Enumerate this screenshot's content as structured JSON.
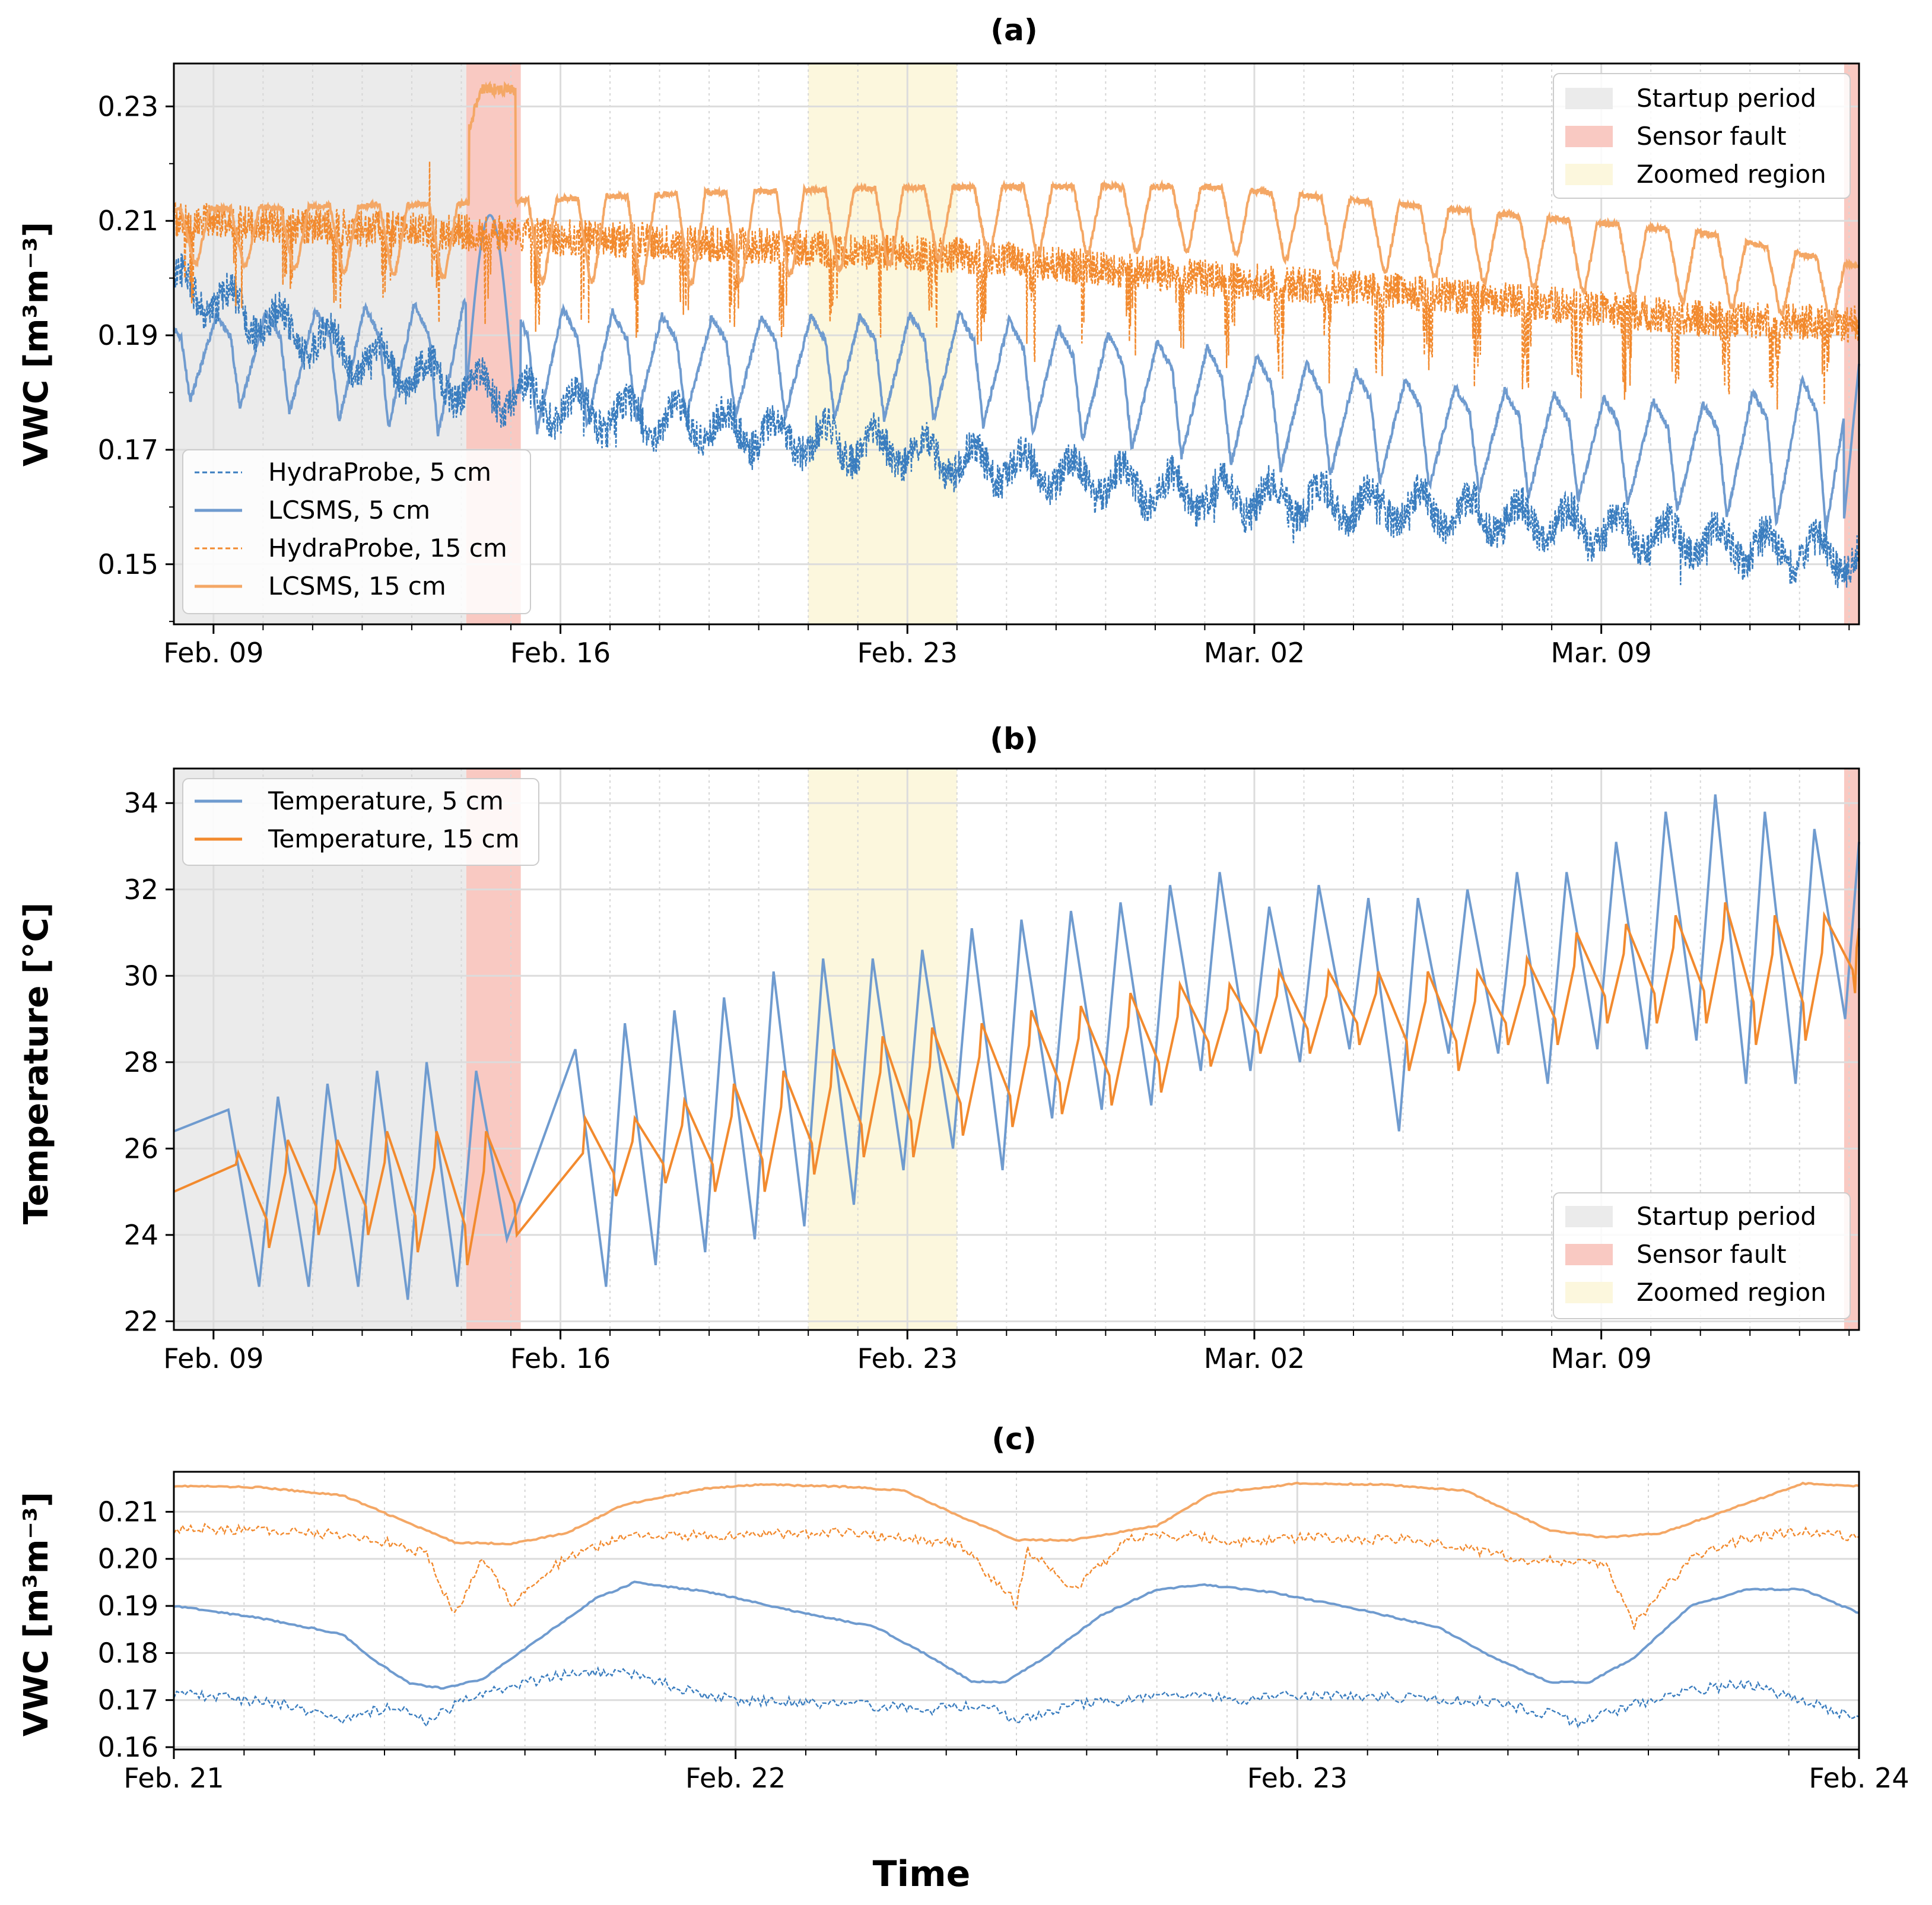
{
  "colors": {
    "blue_hydra": "#3a7dbf",
    "blue_lcsms": "#6f9bcf",
    "orange_hydra": "#f28a2e",
    "orange_lcsms": "#f4a765",
    "startup": "#ebebeb",
    "fault": "#f9c9c2",
    "zoom": "#fcf7dd",
    "grid": "#dcdcdc"
  },
  "figure": {
    "xlabel": "Time"
  },
  "chart_data": [
    {
      "panel": "a",
      "type": "line",
      "title": "(a)",
      "ylabel": "VWC [m³m⁻³]",
      "xlabel": "",
      "x_range_days": [
        -0.8,
        33.2
      ],
      "ylim": [
        0.1395,
        0.2375
      ],
      "yticks": [
        0.15,
        0.17,
        0.19,
        0.21,
        0.23
      ],
      "ytick_labels": [
        "0.15",
        "0.17",
        "0.19",
        "0.21",
        "0.23"
      ],
      "xticks_days": [
        0,
        7,
        14,
        21,
        28
      ],
      "xtick_labels": [
        "Feb. 09",
        "Feb. 16",
        "Feb. 23",
        "Mar. 02",
        "Mar. 09"
      ],
      "shaded_regions": [
        {
          "label": "Startup period",
          "from_day": -0.8,
          "to_day": 5.1,
          "color_key": "startup"
        },
        {
          "label": "Sensor fault",
          "from_day": 5.1,
          "to_day": 6.2,
          "color_key": "fault"
        },
        {
          "label": "Zoomed region",
          "from_day": 12.0,
          "to_day": 15.0,
          "color_key": "zoom"
        },
        {
          "label": "Sensor fault",
          "from_day": 32.9,
          "to_day": 33.2,
          "color_key": "fault"
        }
      ],
      "legends": [
        {
          "position": "top-right",
          "entries": [
            "Startup period",
            "Sensor fault",
            "Zoomed region"
          ]
        },
        {
          "position": "lower-left",
          "entries": [
            "HydraProbe, 5 cm",
            "LCSMS, 5 cm",
            "HydraProbe, 15 cm",
            "LCSMS, 15 cm"
          ]
        }
      ],
      "series": [
        {
          "name": "HydraProbe, 5 cm",
          "style": "dashed",
          "color_key": "blue_hydra",
          "anchors_days": [
            -0.8,
            2,
            5,
            8,
            12,
            16,
            20,
            24,
            28,
            33.2
          ],
          "anchors_values": [
            0.199,
            0.189,
            0.181,
            0.176,
            0.172,
            0.167,
            0.162,
            0.16,
            0.156,
            0.151
          ],
          "diurnal_amplitude": 0.003
        },
        {
          "name": "LCSMS, 5 cm",
          "style": "solid",
          "color_key": "blue_lcsms",
          "anchors_days": [
            -0.8,
            5,
            10,
            15,
            20,
            25,
            30,
            33.2
          ],
          "peak_values": [
            0.193,
            0.196,
            0.193,
            0.194,
            0.188,
            0.181,
            0.178,
            0.185
          ],
          "trough_values": [
            0.179,
            0.172,
            0.176,
            0.175,
            0.168,
            0.163,
            0.159,
            0.155
          ],
          "fault_spike_peak": 0.211
        },
        {
          "name": "HydraProbe, 15 cm",
          "style": "dashed",
          "color_key": "orange_hydra",
          "anchors_days": [
            -0.8,
            5,
            10,
            15,
            20,
            25,
            30,
            33.2
          ],
          "anchors_values": [
            0.21,
            0.208,
            0.206,
            0.204,
            0.2,
            0.197,
            0.193,
            0.192
          ],
          "dip_values_min": 0.178
        },
        {
          "name": "LCSMS, 15 cm",
          "style": "solid",
          "color_key": "orange_lcsms",
          "anchors_days": [
            -0.8,
            5,
            10,
            15,
            20,
            25,
            30,
            33.2
          ],
          "peak_values": [
            0.212,
            0.213,
            0.215,
            0.216,
            0.216,
            0.212,
            0.208,
            0.202
          ],
          "trough_values": [
            0.203,
            0.2,
            0.199,
            0.204,
            0.205,
            0.2,
            0.196,
            0.192
          ],
          "fault_plateau": 0.233
        }
      ]
    },
    {
      "panel": "b",
      "type": "line",
      "title": "(b)",
      "ylabel": "Temperature [°C]",
      "xlabel": "",
      "x_range_days": [
        -0.8,
        33.2
      ],
      "ylim": [
        21.8,
        34.8
      ],
      "yticks": [
        22,
        24,
        26,
        28,
        30,
        32,
        34
      ],
      "ytick_labels": [
        "22",
        "24",
        "26",
        "28",
        "30",
        "32",
        "34"
      ],
      "xticks_days": [
        0,
        7,
        14,
        21,
        28
      ],
      "xtick_labels": [
        "Feb. 09",
        "Feb. 16",
        "Feb. 23",
        "Mar. 02",
        "Mar. 09"
      ],
      "legends": [
        {
          "position": "top-left",
          "entries": [
            "Temperature, 5 cm",
            "Temperature, 15 cm"
          ]
        },
        {
          "position": "lower-right",
          "entries": [
            "Startup period",
            "Sensor fault",
            "Zoomed region"
          ]
        }
      ],
      "series": [
        {
          "name": "Temperature, 5 cm",
          "color_key": "blue_lcsms",
          "peak_days": [
            0.3,
            1.3,
            2.3,
            3.3,
            4.3,
            5.3,
            7.3,
            8.3,
            9.3,
            10.3,
            11.3,
            12.3,
            13.3,
            14.3,
            15.3,
            16.3,
            17.3,
            18.3,
            19.3,
            20.3,
            21.3,
            22.3,
            23.3,
            24.3,
            25.3,
            26.3,
            27.3,
            28.3,
            29.3,
            30.3,
            31.3,
            32.3
          ],
          "peak_values": [
            26.9,
            27.2,
            27.5,
            27.8,
            28.0,
            27.8,
            28.3,
            28.9,
            29.2,
            29.5,
            30.1,
            30.4,
            30.4,
            30.6,
            31.1,
            31.3,
            31.5,
            31.7,
            32.1,
            32.4,
            31.6,
            32.1,
            31.8,
            31.8,
            32.0,
            32.4,
            32.4,
            33.1,
            33.8,
            34.2,
            33.8,
            33.4
          ],
          "trough_values": [
            22.8,
            22.8,
            22.8,
            22.5,
            22.8,
            23.9,
            22.8,
            23.3,
            23.6,
            23.9,
            24.2,
            24.7,
            25.5,
            26.0,
            25.5,
            26.7,
            26.9,
            27.0,
            27.8,
            27.8,
            28.0,
            28.3,
            26.4,
            28.2,
            28.2,
            27.5,
            28.3,
            28.3,
            28.5,
            27.5,
            27.5,
            29.0
          ],
          "end_value": 33.1
        },
        {
          "name": "Temperature, 15 cm",
          "color_key": "orange_hydra",
          "peak_days": [
            0.5,
            1.5,
            2.5,
            3.5,
            4.5,
            5.5,
            7.5,
            8.5,
            9.5,
            10.5,
            11.5,
            12.5,
            13.5,
            14.5,
            15.5,
            16.5,
            17.5,
            18.5,
            19.5,
            20.5,
            21.5,
            22.5,
            23.5,
            24.5,
            25.5,
            26.5,
            27.5,
            28.5,
            29.5,
            30.5,
            31.5,
            32.5
          ],
          "peak_values": [
            25.9,
            26.2,
            26.2,
            26.4,
            26.4,
            26.4,
            26.7,
            26.7,
            27.1,
            27.5,
            27.8,
            28.3,
            28.6,
            28.8,
            28.9,
            29.2,
            29.3,
            29.6,
            29.8,
            29.8,
            30.1,
            30.1,
            30.1,
            30.1,
            30.1,
            30.4,
            31.0,
            31.2,
            31.4,
            31.7,
            31.4,
            31.4
          ],
          "trough_values": [
            23.7,
            24.0,
            24.0,
            23.6,
            23.3,
            24.0,
            24.9,
            25.2,
            25.0,
            25.0,
            25.4,
            25.8,
            25.8,
            26.3,
            26.5,
            26.8,
            27.0,
            27.3,
            27.9,
            28.2,
            28.2,
            28.4,
            27.8,
            27.8,
            28.4,
            28.4,
            28.9,
            28.9,
            28.9,
            28.4,
            28.5,
            29.6
          ],
          "end_value": 31.1
        }
      ]
    },
    {
      "panel": "c",
      "type": "line",
      "title": "(c)",
      "ylabel": "VWC [m³m⁻³]",
      "xlabel": "",
      "x_range_days": [
        0,
        3
      ],
      "ylim": [
        0.1595,
        0.2185
      ],
      "yticks": [
        0.16,
        0.17,
        0.18,
        0.19,
        0.2,
        0.21
      ],
      "ytick_labels": [
        "0.16",
        "0.17",
        "0.18",
        "0.19",
        "0.20",
        "0.21"
      ],
      "xticks_days": [
        0,
        1,
        2,
        3
      ],
      "xtick_labels": [
        "Feb. 21",
        "Feb. 22",
        "Feb. 23",
        "Feb. 24"
      ],
      "series": [
        {
          "name": "LCSMS, 15 cm",
          "style": "solid",
          "color_key": "orange_lcsms",
          "x": [
            0,
            0.15,
            0.3,
            0.4,
            0.5,
            0.6,
            0.7,
            0.8,
            0.95,
            1.05,
            1.2,
            1.3,
            1.4,
            1.5,
            1.6,
            1.75,
            1.85,
            2.0,
            2.15,
            2.3,
            2.45,
            2.55,
            2.65,
            2.8,
            2.9,
            3.0
          ],
          "values": [
            0.2155,
            0.2152,
            0.2135,
            0.2085,
            0.2035,
            0.2032,
            0.2055,
            0.2115,
            0.215,
            0.2158,
            0.2153,
            0.2145,
            0.209,
            0.204,
            0.204,
            0.207,
            0.214,
            0.216,
            0.2158,
            0.2145,
            0.206,
            0.2045,
            0.2055,
            0.2118,
            0.216,
            0.2155
          ]
        },
        {
          "name": "HydraProbe, 15 cm",
          "style": "dashed",
          "color_key": "orange_hydra",
          "x": [
            0,
            0.2,
            0.35,
            0.45,
            0.5,
            0.55,
            0.6,
            0.7,
            0.8,
            0.9,
            1.0,
            1.2,
            1.4,
            1.5,
            1.52,
            1.6,
            1.7,
            1.8,
            1.9,
            2.0,
            2.2,
            2.4,
            2.5,
            2.55,
            2.6,
            2.7,
            2.8,
            2.9,
            3.0
          ],
          "values": [
            0.2065,
            0.206,
            0.2045,
            0.201,
            0.188,
            0.2,
            0.1905,
            0.2005,
            0.2045,
            0.205,
            0.205,
            0.2055,
            0.203,
            0.1905,
            0.202,
            0.193,
            0.204,
            0.205,
            0.2035,
            0.2045,
            0.204,
            0.2,
            0.199,
            0.1985,
            0.186,
            0.2,
            0.2045,
            0.206,
            0.2045
          ]
        },
        {
          "name": "LCSMS, 5 cm",
          "style": "solid",
          "color_key": "blue_lcsms",
          "x": [
            0,
            0.15,
            0.3,
            0.35,
            0.42,
            0.48,
            0.55,
            0.65,
            0.75,
            0.82,
            0.95,
            1.1,
            1.25,
            1.35,
            1.42,
            1.48,
            1.55,
            1.65,
            1.75,
            1.83,
            1.95,
            2.1,
            2.25,
            2.35,
            2.45,
            2.52,
            2.6,
            2.7,
            2.8,
            2.9,
            3.0
          ],
          "values": [
            0.19,
            0.1875,
            0.184,
            0.179,
            0.1735,
            0.1725,
            0.1745,
            0.183,
            0.1915,
            0.195,
            0.193,
            0.189,
            0.1855,
            0.179,
            0.174,
            0.1738,
            0.179,
            0.188,
            0.1935,
            0.1945,
            0.193,
            0.1895,
            0.1855,
            0.179,
            0.1738,
            0.1738,
            0.179,
            0.19,
            0.1935,
            0.1935,
            0.1885
          ]
        },
        {
          "name": "HydraProbe, 5 cm",
          "style": "dashed",
          "color_key": "blue_hydra",
          "x": [
            0,
            0.1,
            0.2,
            0.3,
            0.4,
            0.45,
            0.5,
            0.6,
            0.7,
            0.8,
            0.9,
            1.0,
            1.2,
            1.35,
            1.45,
            1.5,
            1.6,
            1.7,
            1.8,
            1.9,
            2.0,
            2.2,
            2.35,
            2.45,
            2.5,
            2.6,
            2.7,
            2.8,
            2.9,
            3.0
          ],
          "values": [
            0.1715,
            0.1705,
            0.169,
            0.166,
            0.169,
            0.165,
            0.169,
            0.173,
            0.1755,
            0.176,
            0.1725,
            0.17,
            0.169,
            0.168,
            0.169,
            0.1655,
            0.169,
            0.17,
            0.171,
            0.17,
            0.171,
            0.1705,
            0.1695,
            0.167,
            0.165,
            0.169,
            0.172,
            0.1735,
            0.17,
            0.166
          ]
        }
      ]
    }
  ]
}
